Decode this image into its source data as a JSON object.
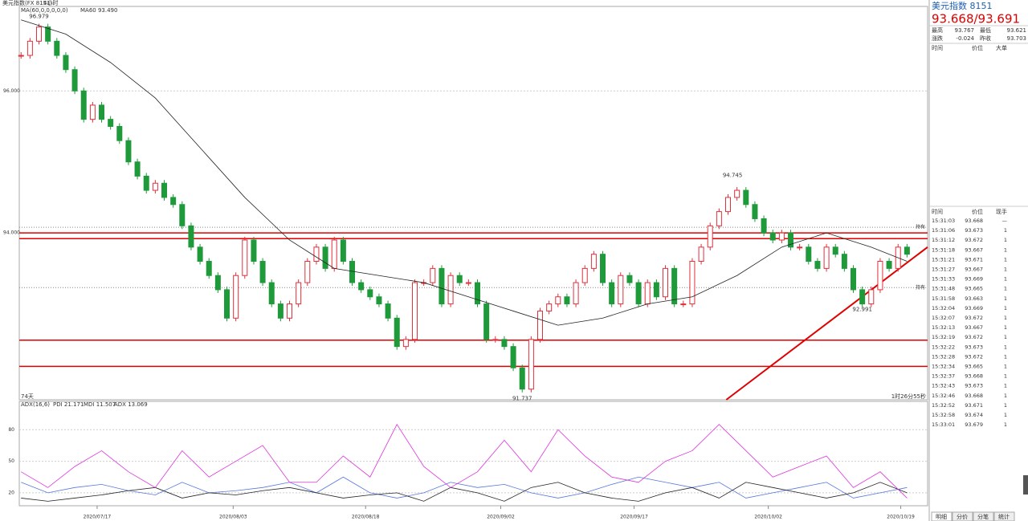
{
  "toolbar": {
    "symbol": "美元指数(FX 8151)",
    "period": "4小时",
    "ma_setting": "MA(60,0,0,0,0,0)"
  },
  "chart_data": [
    {
      "type": "candlestick",
      "x": [
        0,
        1,
        2,
        3,
        4,
        5,
        6,
        7,
        8,
        9,
        10,
        11,
        12,
        13,
        14,
        15,
        16,
        17,
        18,
        19,
        20,
        21,
        22,
        23,
        24,
        25,
        26,
        27,
        28,
        29,
        30,
        31,
        32,
        33,
        34,
        35,
        36,
        37,
        38,
        39,
        40,
        41,
        42,
        43,
        44,
        45,
        46,
        47,
        48,
        49,
        50,
        51,
        52,
        53,
        54,
        55,
        56,
        57,
        58,
        59,
        60,
        61,
        62,
        63,
        64,
        65,
        66,
        67,
        68,
        69,
        70,
        71,
        72,
        73,
        74,
        75,
        76,
        77,
        78,
        79,
        80,
        81,
        82,
        83,
        84,
        85,
        86,
        87,
        88,
        89,
        90,
        91,
        92,
        93,
        94,
        95,
        96,
        97,
        98,
        99
      ],
      "values": [
        96.5,
        96.7,
        96.9,
        96.7,
        96.5,
        96.3,
        96.0,
        95.6,
        95.8,
        95.6,
        95.5,
        95.3,
        95.0,
        94.8,
        94.6,
        94.7,
        94.5,
        94.4,
        94.1,
        93.8,
        93.6,
        93.4,
        93.2,
        92.8,
        93.4,
        93.9,
        93.6,
        93.3,
        93.0,
        92.8,
        93.0,
        93.3,
        93.6,
        93.8,
        93.5,
        93.9,
        93.6,
        93.3,
        93.2,
        93.1,
        93.0,
        92.8,
        92.4,
        92.5,
        93.3,
        93.3,
        93.5,
        93.0,
        93.4,
        93.3,
        93.3,
        93.0,
        92.5,
        92.5,
        92.4,
        92.1,
        91.8,
        92.5,
        92.9,
        93.0,
        93.1,
        93.0,
        93.3,
        93.5,
        93.7,
        93.3,
        93.0,
        93.4,
        93.3,
        93.0,
        93.3,
        93.1,
        93.5,
        93.0,
        93.0,
        93.6,
        93.8,
        94.1,
        94.3,
        94.5,
        94.6,
        94.4,
        94.2,
        94.0,
        93.9,
        94.0,
        93.8,
        93.8,
        93.6,
        93.5,
        93.8,
        93.7,
        93.5,
        93.2,
        93.0,
        93.2,
        93.6,
        93.5,
        93.8,
        93.7
      ],
      "up_color": "#e0303a",
      "down_color": "#1e9a3a",
      "series": [
        {
          "name": "MA60 93.490",
          "color": "#222",
          "x": [
            0,
            5,
            10,
            15,
            20,
            25,
            30,
            35,
            40,
            45,
            50,
            55,
            60,
            65,
            70,
            75,
            80,
            85,
            90,
            95,
            99
          ],
          "values": [
            97.0,
            96.8,
            96.4,
            95.9,
            95.2,
            94.5,
            93.9,
            93.5,
            93.4,
            93.3,
            93.1,
            92.9,
            92.7,
            92.8,
            93.0,
            93.1,
            93.4,
            93.8,
            94.0,
            93.8,
            93.6
          ]
        }
      ],
      "xlim": [
        -0.2,
        101.3
      ],
      "ylim": [
        91.65,
        97.19
      ],
      "yticks": [
        {
          "value": 96,
          "label": "96.000"
        },
        {
          "value": 94,
          "label": "94.000"
        }
      ],
      "hlines": [
        {
          "value": 94.0,
          "color": "#e00000"
        },
        {
          "value": 93.92,
          "color": "#e00000"
        },
        {
          "value": 92.49,
          "color": "#e00000"
        },
        {
          "value": 92.12,
          "color": "#e00000"
        }
      ],
      "dotted_lines": [
        {
          "value": 94.08,
          "label": "持有"
        },
        {
          "value": 93.23,
          "label": "持有"
        }
      ],
      "trendline": {
        "x": [
          78.8,
          101.3
        ],
        "y": [
          91.65,
          93.8
        ],
        "color": "#e00000"
      },
      "annotations": [
        {
          "text": "96.979",
          "x": 2,
          "y": 96.979
        },
        {
          "text": "94.745",
          "x": 79.5,
          "y": 94.745
        },
        {
          "text": "92.991",
          "x": 94,
          "y": 92.991
        },
        {
          "text": "91.737",
          "x": 56,
          "y": 91.737
        }
      ],
      "footer_left": "74天",
      "footer_right": "1时26分55秒"
    },
    {
      "type": "line",
      "title": "ADX(16,6)",
      "x": [
        0,
        3,
        6,
        9,
        12,
        15,
        18,
        21,
        24,
        27,
        30,
        33,
        36,
        39,
        42,
        45,
        48,
        51,
        54,
        57,
        60,
        63,
        66,
        69,
        72,
        75,
        78,
        81,
        84,
        87,
        90,
        93,
        96,
        99
      ],
      "series": [
        {
          "name": "PDI 21.171",
          "color": "#5577dd",
          "values": [
            30,
            20,
            25,
            28,
            22,
            18,
            30,
            20,
            22,
            25,
            30,
            20,
            35,
            20,
            15,
            20,
            30,
            25,
            28,
            20,
            15,
            20,
            28,
            35,
            30,
            25,
            30,
            15,
            20,
            25,
            30,
            15,
            20,
            25
          ]
        },
        {
          "name": "MDI 11.507",
          "color": "#222222",
          "values": [
            15,
            12,
            15,
            18,
            22,
            25,
            15,
            20,
            18,
            22,
            25,
            20,
            15,
            18,
            20,
            12,
            25,
            20,
            12,
            25,
            30,
            20,
            15,
            12,
            20,
            25,
            15,
            30,
            25,
            20,
            15,
            20,
            30,
            20
          ]
        },
        {
          "name": "ADX 13.069",
          "color": "#dd33dd",
          "values": [
            40,
            25,
            45,
            60,
            40,
            25,
            60,
            35,
            50,
            65,
            30,
            30,
            55,
            35,
            85,
            45,
            25,
            40,
            70,
            40,
            80,
            55,
            35,
            30,
            50,
            60,
            85,
            60,
            35,
            45,
            55,
            25,
            40,
            15
          ]
        }
      ],
      "xlim": [
        -0.2,
        101.3
      ],
      "ylim": [
        7.7,
        106.9
      ],
      "yticks": [
        20,
        50,
        80
      ],
      "xticks": [
        {
          "value": 8.5,
          "label": "2020/07/17"
        },
        {
          "value": 23.7,
          "label": "2020/08/03"
        },
        {
          "value": 38.5,
          "label": "2020/08/18"
        },
        {
          "value": 53.6,
          "label": "2020/09/02"
        },
        {
          "value": 68.5,
          "label": "2020/09/17"
        },
        {
          "value": 83.5,
          "label": "2020/10/02"
        },
        {
          "value": 98.3,
          "label": "2020/10/19"
        }
      ]
    }
  ],
  "quote_panel": {
    "title": "美元指数  8151",
    "price": "93.668/93.691",
    "rows": [
      [
        "最高",
        "93.767",
        "最低",
        "93.621"
      ],
      [
        "涨跌",
        "-0.024",
        "昨收",
        "93.703"
      ]
    ],
    "big_order_header": [
      "时间",
      "价位",
      "大单"
    ]
  },
  "ticks_panel": {
    "header": [
      "时间",
      "价位",
      "现手"
    ],
    "rows": [
      [
        "15:31:03",
        "93.668",
        "—"
      ],
      [
        "15:31:06",
        "93.673",
        "1"
      ],
      [
        "15:31:12",
        "93.672",
        "1"
      ],
      [
        "15:31:18",
        "93.667",
        "1"
      ],
      [
        "15:31:21",
        "93.671",
        "1"
      ],
      [
        "15:31:27",
        "93.667",
        "1"
      ],
      [
        "15:31:33",
        "93.669",
        "1"
      ],
      [
        "15:31:48",
        "93.665",
        "1"
      ],
      [
        "15:31:58",
        "93.663",
        "1"
      ],
      [
        "15:32:04",
        "93.669",
        "1"
      ],
      [
        "15:32:07",
        "93.672",
        "1"
      ],
      [
        "15:32:13",
        "93.667",
        "1"
      ],
      [
        "15:32:19",
        "93.672",
        "1"
      ],
      [
        "15:32:22",
        "93.673",
        "1"
      ],
      [
        "15:32:28",
        "93.672",
        "1"
      ],
      [
        "15:32:34",
        "93.665",
        "1"
      ],
      [
        "15:32:37",
        "93.668",
        "1"
      ],
      [
        "15:32:43",
        "93.673",
        "1"
      ],
      [
        "15:32:46",
        "93.668",
        "1"
      ],
      [
        "15:32:52",
        "93.671",
        "1"
      ],
      [
        "15:32:58",
        "93.674",
        "1"
      ],
      [
        "15:33:01",
        "93.679",
        "1"
      ]
    ]
  },
  "tabs": [
    "明细",
    "分价",
    "分笔",
    "统计"
  ]
}
